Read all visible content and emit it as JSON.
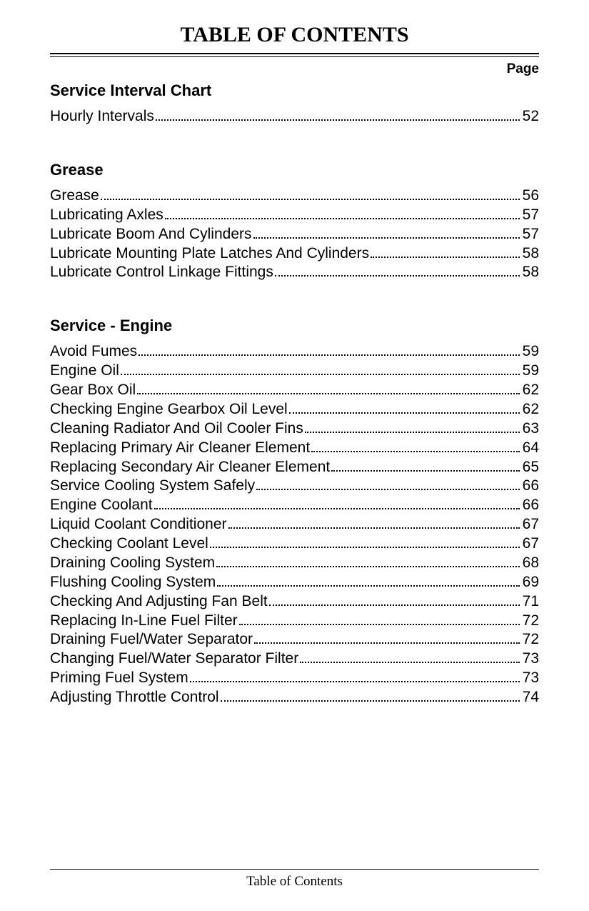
{
  "title": "TABLE OF CONTENTS",
  "page_label": "Page",
  "footer": "Table of Contents",
  "sections": [
    {
      "heading": "Service Interval Chart",
      "entries": [
        {
          "label": "Hourly Intervals",
          "page": "52"
        }
      ]
    },
    {
      "heading": "Grease",
      "entries": [
        {
          "label": "Grease",
          "page": "56"
        },
        {
          "label": "Lubricating Axles",
          "page": "57"
        },
        {
          "label": "Lubricate Boom And Cylinders",
          "page": "57"
        },
        {
          "label": "Lubricate Mounting Plate Latches And Cylinders",
          "page": "58"
        },
        {
          "label": "Lubricate Control Linkage Fittings",
          "page": "58"
        }
      ]
    },
    {
      "heading": "Service - Engine",
      "entries": [
        {
          "label": "Avoid Fumes",
          "page": "59"
        },
        {
          "label": "Engine Oil",
          "page": "59"
        },
        {
          "label": "Gear Box Oil",
          "page": "62"
        },
        {
          "label": "Checking Engine Gearbox Oil Level",
          "page": "62"
        },
        {
          "label": "Cleaning Radiator And Oil Cooler Fins",
          "page": "63"
        },
        {
          "label": "Replacing Primary Air Cleaner Element",
          "page": "64"
        },
        {
          "label": "Replacing Secondary Air Cleaner Element",
          "page": "65"
        },
        {
          "label": "Service Cooling System Safely",
          "page": "66"
        },
        {
          "label": "Engine Coolant",
          "page": "66"
        },
        {
          "label": "Liquid Coolant Conditioner",
          "page": "67"
        },
        {
          "label": "Checking Coolant Level",
          "page": "67"
        },
        {
          "label": "Draining Cooling System",
          "page": "68"
        },
        {
          "label": "Flushing Cooling System",
          "page": "69"
        },
        {
          "label": "Checking And Adjusting Fan Belt",
          "page": "71"
        },
        {
          "label": "Replacing In-Line Fuel Filter",
          "page": "72"
        },
        {
          "label": "Draining Fuel/Water Separator",
          "page": "72"
        },
        {
          "label": "Changing Fuel/Water Separator Filter",
          "page": "73"
        },
        {
          "label": "Priming Fuel System",
          "page": "73"
        },
        {
          "label": "Adjusting Throttle Control",
          "page": "74"
        }
      ]
    }
  ]
}
